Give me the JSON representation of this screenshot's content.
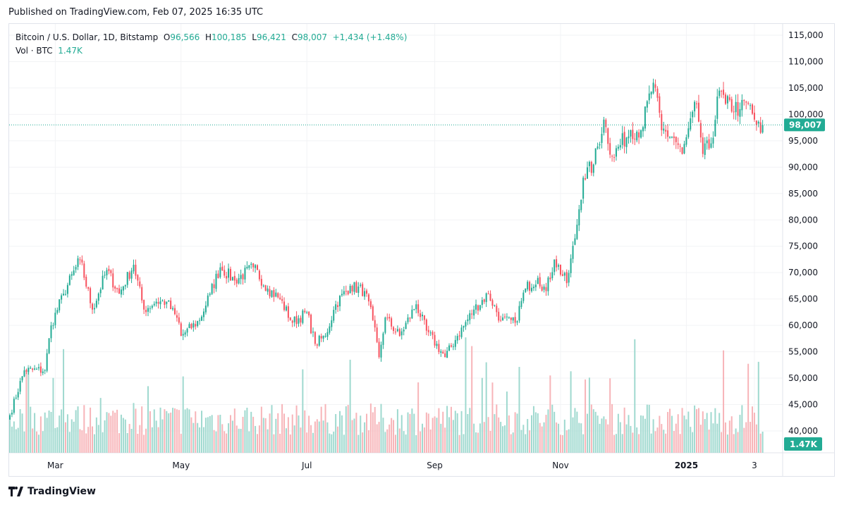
{
  "published": "Published on TradingView.com, Feb 07, 2025 16:35 UTC",
  "legend": {
    "symbol": "Bitcoin / U.S. Dollar, 1D, Bitstamp",
    "o_label": "O",
    "o": "96,566",
    "h_label": "H",
    "h": "100,185",
    "l_label": "L",
    "l": "96,421",
    "c_label": "C",
    "c": "98,007",
    "change": "+1,434 (+1.48%)",
    "vol_label": "Vol · BTC",
    "vol": "1.47K"
  },
  "logo": "TradingView",
  "colors": {
    "up": "#22ab94",
    "down": "#f7525f",
    "up_vol": "#9fd9cf",
    "down_vol": "#f7b4b8",
    "price_line": "#22ab94"
  },
  "chart_data": {
    "type": "candlestick",
    "ylim": [
      38000,
      117000
    ],
    "y_ticks": [
      "115,000",
      "110,000",
      "105,000",
      "100,000",
      "95,000",
      "90,000",
      "85,000",
      "80,000",
      "75,000",
      "70,000",
      "65,000",
      "60,000",
      "55,000",
      "50,000",
      "45,000",
      "40,000"
    ],
    "x_ticks": [
      {
        "label": "Mar",
        "date": "2024-03-01"
      },
      {
        "label": "May",
        "date": "2024-05-01"
      },
      {
        "label": "Jul",
        "date": "2024-07-01"
      },
      {
        "label": "Sep",
        "date": "2024-09-01"
      },
      {
        "label": "Nov",
        "date": "2024-11-01"
      },
      {
        "label": "2025",
        "date": "2025-01-01"
      },
      {
        "label": "3",
        "date": "2025-02-03"
      }
    ],
    "last_price": 98007,
    "last_price_label": "98,007",
    "last_volume_label": "1.47K",
    "approx_closes": [
      [
        "2024-02-08",
        43000
      ],
      [
        "2024-02-15",
        51500
      ],
      [
        "2024-02-25",
        51500
      ],
      [
        "2024-02-28",
        60000
      ],
      [
        "2024-03-05",
        66000
      ],
      [
        "2024-03-13",
        72500
      ],
      [
        "2024-03-19",
        63000
      ],
      [
        "2024-03-26",
        70500
      ],
      [
        "2024-04-01",
        66000
      ],
      [
        "2024-04-08",
        71500
      ],
      [
        "2024-04-13",
        63000
      ],
      [
        "2024-04-19",
        64500
      ],
      [
        "2024-04-24",
        64500
      ],
      [
        "2024-04-30",
        60500
      ],
      [
        "2024-05-01",
        58000
      ],
      [
        "2024-05-10",
        61000
      ],
      [
        "2024-05-15",
        66000
      ],
      [
        "2024-05-20",
        71000
      ],
      [
        "2024-05-27",
        68500
      ],
      [
        "2024-06-05",
        71000
      ],
      [
        "2024-06-12",
        67000
      ],
      [
        "2024-06-18",
        65000
      ],
      [
        "2024-06-24",
        60500
      ],
      [
        "2024-07-01",
        62500
      ],
      [
        "2024-07-05",
        56500
      ],
      [
        "2024-07-10",
        58000
      ],
      [
        "2024-07-15",
        64000
      ],
      [
        "2024-07-22",
        67500
      ],
      [
        "2024-07-29",
        66500
      ],
      [
        "2024-08-02",
        61000
      ],
      [
        "2024-08-05",
        54000
      ],
      [
        "2024-08-08",
        61500
      ],
      [
        "2024-08-15",
        58000
      ],
      [
        "2024-08-23",
        64000
      ],
      [
        "2024-08-28",
        59000
      ],
      [
        "2024-09-06",
        54000
      ],
      [
        "2024-09-12",
        58000
      ],
      [
        "2024-09-20",
        63000
      ],
      [
        "2024-09-27",
        66000
      ],
      [
        "2024-10-03",
        61000
      ],
      [
        "2024-10-10",
        60500
      ],
      [
        "2024-10-15",
        67000
      ],
      [
        "2024-10-21",
        69000
      ],
      [
        "2024-10-25",
        66500
      ],
      [
        "2024-10-29",
        72500
      ],
      [
        "2024-11-04",
        68000
      ],
      [
        "2024-11-08",
        76500
      ],
      [
        "2024-11-12",
        88000
      ],
      [
        "2024-11-17",
        90500
      ],
      [
        "2024-11-22",
        99000
      ],
      [
        "2024-11-26",
        92000
      ],
      [
        "2024-12-05",
        97000
      ],
      [
        "2024-12-10",
        97000
      ],
      [
        "2024-12-16",
        106000
      ],
      [
        "2024-12-20",
        97000
      ],
      [
        "2024-12-26",
        95500
      ],
      [
        "2024-12-30",
        92500
      ],
      [
        "2025-01-06",
        102000
      ],
      [
        "2025-01-09",
        92500
      ],
      [
        "2025-01-13",
        94500
      ],
      [
        "2025-01-17",
        104500
      ],
      [
        "2025-01-20",
        102000
      ],
      [
        "2025-01-27",
        101000
      ],
      [
        "2025-01-31",
        102000
      ],
      [
        "2025-02-03",
        99000
      ],
      [
        "2025-02-06",
        96500
      ],
      [
        "2025-02-07",
        98007
      ]
    ]
  }
}
